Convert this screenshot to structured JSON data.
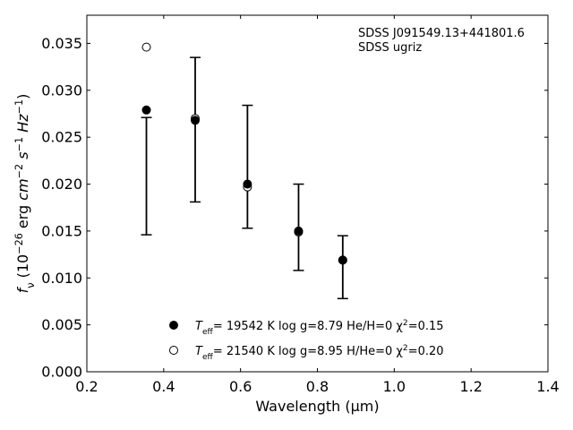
{
  "chart_data": {
    "type": "scatter",
    "xlabel": "Wavelength (μm)",
    "ylabel_parts": [
      "f",
      "ν",
      " (10",
      "−26",
      " erg ",
      "cm",
      "−2",
      " s",
      "−1",
      " Hz",
      "−1",
      ")"
    ],
    "xlim": [
      0.2,
      1.4
    ],
    "ylim": [
      0.0,
      0.038
    ],
    "x_ticks": [
      0.2,
      0.4,
      0.6,
      0.8,
      1.0,
      1.2,
      1.4
    ],
    "x_tick_labels": [
      "0.2",
      "0.4",
      "0.6",
      "0.8",
      "1.0",
      "1.2",
      "1.4"
    ],
    "y_ticks": [
      0.0,
      0.005,
      0.01,
      0.015,
      0.02,
      0.025,
      0.03,
      0.035
    ],
    "y_tick_labels": [
      "0.000",
      "0.005",
      "0.010",
      "0.015",
      "0.020",
      "0.025",
      "0.030",
      "0.035"
    ],
    "annotation_lines": [
      "SDSS J091549.13+441801.6",
      "SDSS ugriz"
    ],
    "observed": {
      "x": [
        0.355,
        0.482,
        0.618,
        0.751,
        0.866
      ],
      "y_low": [
        0.0146,
        0.0181,
        0.0153,
        0.0108,
        0.0078
      ],
      "y_high": [
        0.0271,
        0.0335,
        0.0284,
        0.02,
        0.0145
      ]
    },
    "series": [
      {
        "name": "Teff= 19542 K  log g=8.79  He/H=0  χ2=0.15",
        "label_parts": [
          "T",
          "eff",
          "= 19542 K  log g=8.79  He/H=0  χ",
          "2",
          "=0.15"
        ],
        "marker": "filled-circle",
        "x": [
          0.355,
          0.482,
          0.618,
          0.751,
          0.866
        ],
        "y": [
          0.0279,
          0.0268,
          0.02,
          0.015,
          0.0119
        ]
      },
      {
        "name": "Teff= 21540 K  log g=8.95  H/He=0  χ2=0.20",
        "label_parts": [
          "T",
          "eff",
          "= 21540 K  log g=8.95  H/He=0  χ",
          "2",
          "=0.20"
        ],
        "marker": "open-circle",
        "x": [
          0.355,
          0.482,
          0.618,
          0.751,
          0.866
        ],
        "y": [
          0.0346,
          0.027,
          0.0197,
          0.0149,
          0.0119
        ]
      }
    ],
    "legend_position": "lower-center",
    "grid": false
  }
}
